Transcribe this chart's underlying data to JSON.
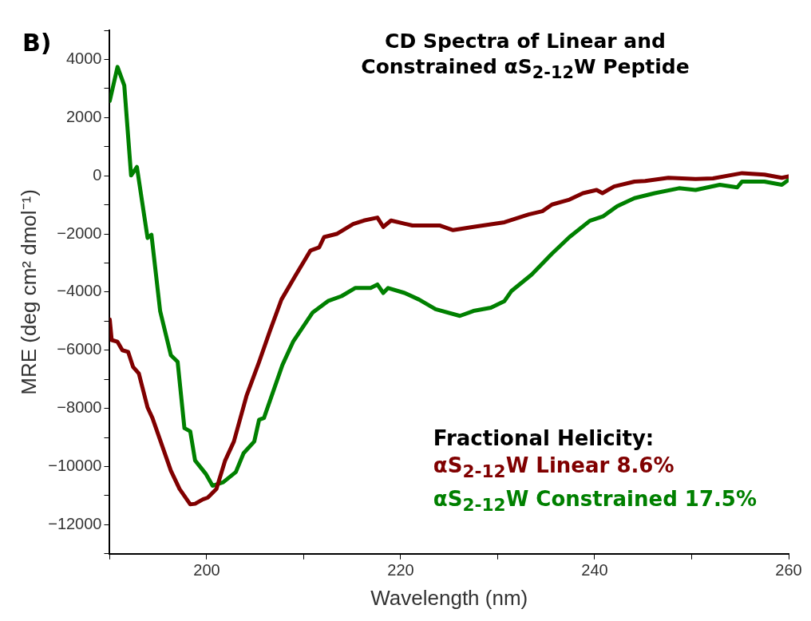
{
  "chart_data": {
    "type": "line",
    "title": "CD Spectra of Linear and Constrained αS$_{2-12}$W Peptide",
    "xlabel": "Wavelength (nm)",
    "ylabel": "MRE (deg cm² dmol⁻¹)",
    "annotations": [
      "B)"
    ],
    "legend_title": "Fractional Helicity:",
    "grid": false,
    "marker": "none",
    "line_style": "solid",
    "xlim": [
      190,
      260
    ],
    "xticks": [
      {
        "value": 190,
        "label": null
      },
      200,
      {
        "value": 210,
        "label": null
      },
      220,
      {
        "value": 230,
        "label": null
      },
      240,
      {
        "value": 250,
        "label": null
      },
      260
    ],
    "ylim": [
      -13000,
      5000
    ],
    "yticks": [
      {
        "value": -13000,
        "label": null
      },
      -12000,
      {
        "value": -11000,
        "label": null
      },
      -10000,
      {
        "value": -9000,
        "label": null
      },
      -8000,
      {
        "value": -7000,
        "label": null
      },
      -6000,
      {
        "value": -5000,
        "label": null
      },
      -4000,
      {
        "value": -3000,
        "label": null
      },
      -2000,
      {
        "value": -1000,
        "label": null
      },
      0,
      {
        "value": 1000,
        "label": null
      },
      2000,
      {
        "value": 3000,
        "label": null
      },
      4000,
      {
        "value": 5000,
        "label": null
      }
    ],
    "series": [
      {
        "name": "αS$_{2-12}$W Linear 8.6%",
        "color": "#800000",
        "x": [
          190.0,
          190.2,
          190.8,
          191.3,
          191.9,
          192.4,
          193.0,
          193.9,
          194.4,
          196.3,
          197.2,
          198.3,
          198.8,
          199.6,
          200.1,
          201.0,
          201.9,
          202.8,
          204.1,
          205.4,
          206.5,
          207.7,
          209.1,
          210.7,
          211.6,
          212.1,
          213.4,
          215.1,
          216.2,
          217.6,
          218.2,
          219.0,
          221.2,
          224.0,
          225.4,
          227.5,
          230.7,
          233.2,
          234.6,
          235.6,
          237.4,
          238.8,
          240.2,
          240.8,
          242.0,
          244.1,
          245.2,
          247.6,
          250.4,
          252.2,
          255.2,
          257.5,
          259.3,
          260.0
        ],
        "values": [
          -4940,
          -5650,
          -5710,
          -6000,
          -6060,
          -6570,
          -6800,
          -7970,
          -8330,
          -10140,
          -10770,
          -11300,
          -11280,
          -11130,
          -11070,
          -10770,
          -9790,
          -9140,
          -7570,
          -6400,
          -5350,
          -4260,
          -3460,
          -2570,
          -2460,
          -2110,
          -2000,
          -1660,
          -1540,
          -1440,
          -1760,
          -1540,
          -1710,
          -1710,
          -1870,
          -1760,
          -1600,
          -1330,
          -1220,
          -990,
          -820,
          -600,
          -490,
          -600,
          -370,
          -200,
          -180,
          -70,
          -110,
          -90,
          90,
          40,
          -70,
          -20
        ]
      },
      {
        "name": "αS$_{2-12}$W Constrained 17.5%",
        "color": "#008000",
        "x": [
          190.0,
          190.8,
          191.5,
          192.2,
          192.8,
          193.9,
          194.3,
          195.2,
          196.3,
          197.0,
          197.7,
          198.3,
          198.8,
          199.9,
          200.6,
          201.7,
          203.0,
          203.8,
          204.9,
          205.4,
          205.9,
          207.8,
          208.9,
          210.9,
          212.5,
          213.9,
          215.3,
          216.9,
          217.6,
          218.2,
          218.7,
          220.4,
          221.9,
          223.6,
          226.1,
          227.5,
          229.3,
          230.7,
          231.4,
          233.5,
          235.6,
          237.4,
          239.5,
          240.9,
          242.3,
          244.1,
          246.2,
          248.7,
          250.4,
          252.9,
          254.7,
          255.2,
          257.5,
          259.3,
          260.0
        ],
        "values": [
          2570,
          3740,
          3100,
          10,
          300,
          -2140,
          -2030,
          -4660,
          -6170,
          -6400,
          -8680,
          -8790,
          -9790,
          -10250,
          -10660,
          -10540,
          -10190,
          -9540,
          -9140,
          -8390,
          -8330,
          -6510,
          -5710,
          -4710,
          -4310,
          -4140,
          -3860,
          -3860,
          -3740,
          -4030,
          -3860,
          -4030,
          -4260,
          -4590,
          -4820,
          -4650,
          -4540,
          -4310,
          -3970,
          -3400,
          -2680,
          -2110,
          -1550,
          -1390,
          -1050,
          -770,
          -600,
          -430,
          -490,
          -310,
          -400,
          -200,
          -200,
          -310,
          -140
        ]
      }
    ]
  }
}
